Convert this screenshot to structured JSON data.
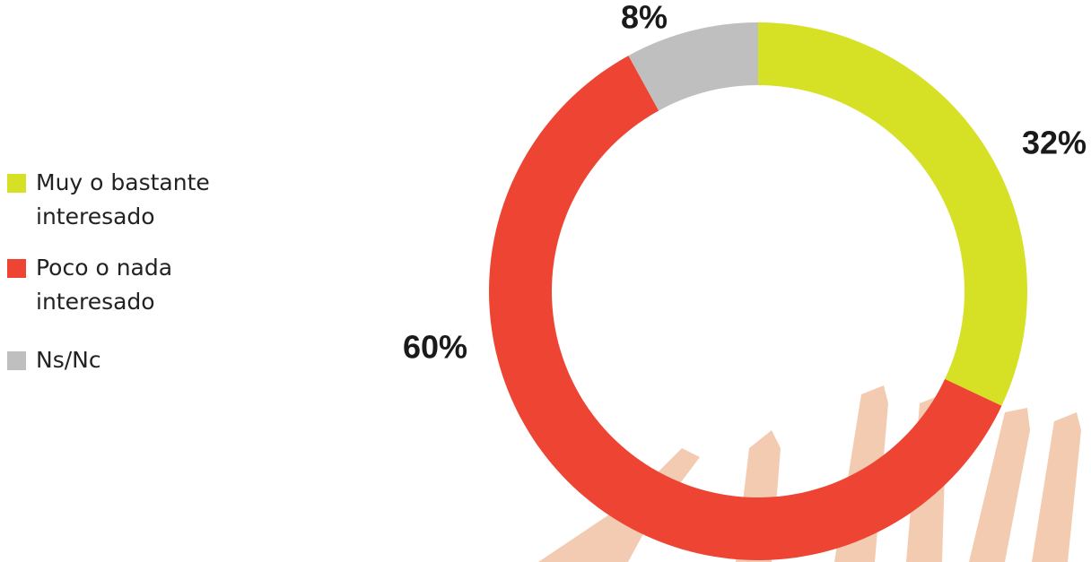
{
  "chart_data": {
    "type": "donut",
    "categories": [
      "Muy o bastante interesado",
      "Poco o nada interesado",
      "Ns/Nc"
    ],
    "values": [
      32,
      60,
      8
    ],
    "value_labels": [
      "32%",
      "60%",
      "8%"
    ],
    "colors": [
      "#d6e025",
      "#ee4433",
      "#bfbfbf"
    ]
  }
}
